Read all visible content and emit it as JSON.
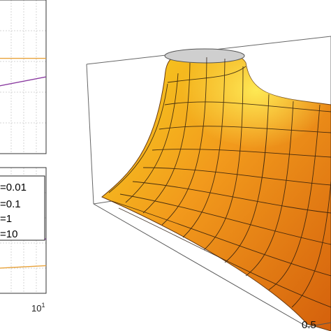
{
  "colors": {
    "surface_light": "#f5d21a",
    "surface_mid": "#f09a1c",
    "surface_dark": "#d8640e",
    "mesh": "#2a1a0c",
    "cap": "#cfcfcf",
    "line_orange": "#e8a23a",
    "line_purple": "#8a3aa0",
    "grid": "#d0d0d0",
    "axis": "#333333"
  },
  "chart_data": [
    {
      "type": "line",
      "panel": "top-left",
      "series": [
        {
          "color": "#e8a23a",
          "x": [
            0,
            1
          ],
          "y": [
            0.62,
            0.62
          ]
        },
        {
          "color": "#8a3aa0",
          "x": [
            0,
            1
          ],
          "y": [
            0.44,
            0.5
          ]
        }
      ]
    },
    {
      "type": "line",
      "panel": "bottom-left",
      "xscale": "log",
      "xtick_labels": [
        "10^1"
      ],
      "legend": {
        "placement": "top-right",
        "entries": [
          "=0.01",
          "=0.1",
          "=1",
          "=10"
        ]
      },
      "series": [
        {
          "color": "#8a3aa0",
          "x": [
            0,
            1
          ],
          "y": [
            0.55,
            0.43
          ]
        },
        {
          "color": "#e8a23a",
          "x": [
            0,
            1
          ],
          "y": [
            0.2,
            0.22
          ]
        }
      ]
    },
    {
      "type": "surface",
      "panel": "right",
      "tick_labels": [
        "0.5"
      ],
      "grid": true
    }
  ]
}
